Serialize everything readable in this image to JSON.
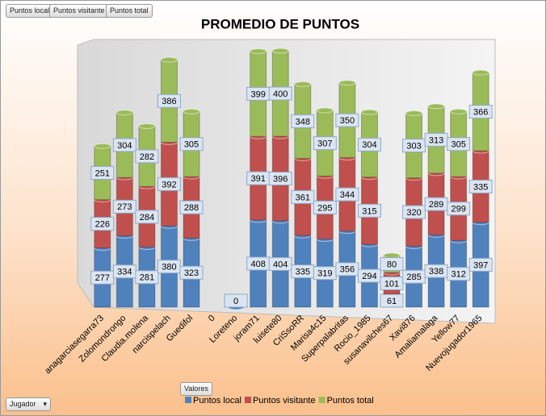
{
  "ui": {
    "field_buttons": [
      "Puntos local",
      "Puntos visitante",
      "Puntos total"
    ],
    "values_button": "Valores",
    "row_field": "Jugador"
  },
  "chart_data": {
    "type": "bar",
    "stacked": true,
    "title": "PROMEDIO DE PUNTOS",
    "categories": [
      "anagarciasegarra73",
      "Zolomondrongo",
      "Claudia.molena",
      "narcispelach",
      "Guedifol",
      "0",
      "Loreteno",
      "joram71",
      "luisete80",
      "CriSsoRR",
      "Marisa4c15",
      "Superpalabritas",
      "Rocio_1985",
      "susanavilches67",
      "Xavi876",
      "Amaliamalaga",
      "Yellow77",
      "Nuevojugador1965"
    ],
    "series": [
      {
        "name": "Puntos local",
        "color": "#4f81bd",
        "values": [
          277,
          334,
          281,
          380,
          323,
          null,
          0,
          408,
          404,
          335,
          319,
          356,
          294,
          61,
          285,
          338,
          312,
          397
        ]
      },
      {
        "name": "Puntos visitante",
        "color": "#c0504d",
        "values": [
          226,
          273,
          284,
          392,
          288,
          null,
          null,
          391,
          396,
          361,
          295,
          344,
          315,
          101,
          320,
          289,
          299,
          335
        ]
      },
      {
        "name": "Puntos total",
        "color": "#9bbb59",
        "values": [
          251,
          304,
          282,
          386,
          305,
          null,
          null,
          399,
          400,
          348,
          307,
          350,
          304,
          80,
          303,
          313,
          305,
          366
        ]
      }
    ],
    "legend": "bottom"
  }
}
